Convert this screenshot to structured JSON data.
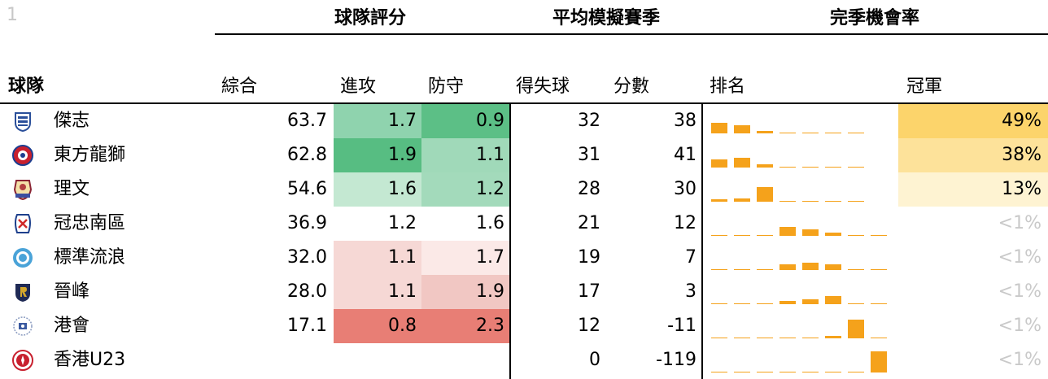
{
  "row_number": "1",
  "groups": {
    "rating": "球隊評分",
    "projection": "平均模擬賽季",
    "chances": "完季機會率"
  },
  "headers": {
    "team": "球隊",
    "overall": "綜合",
    "attack": "進攻",
    "defense": "防守",
    "goal_diff": "得失球",
    "points": "分數",
    "rank": "排名",
    "champion": "冠軍"
  },
  "colors": {
    "rank_bar": "#f5a21b",
    "faint_text": "#c9c9c9"
  },
  "chart_data": {
    "type": "table",
    "columns": [
      "球隊",
      "綜合",
      "進攻",
      "防守",
      "得失球",
      "分數",
      "排名",
      "冠軍"
    ],
    "rank_positions": 8,
    "rows": [
      {
        "team": "傑志",
        "logo": "kitchee-crest-icon",
        "overall": "63.7",
        "attack": "1.7",
        "defense": "0.9",
        "goal_diff": "32",
        "points": "38",
        "champion": "49%",
        "attack_bg": "#8fd3ae",
        "defense_bg": "#5cbf86",
        "champion_bg": "#fcd46b",
        "rank_dist": [
          0.49,
          0.38,
          0.13,
          0.0,
          0.0,
          0.0,
          0.0,
          0.0
        ]
      },
      {
        "team": "東方龍獅",
        "logo": "eastern-crest-icon",
        "overall": "62.8",
        "attack": "1.9",
        "defense": "1.1",
        "goal_diff": "31",
        "points": "41",
        "champion": "38%",
        "attack_bg": "#57bd82",
        "defense_bg": "#a0d9b9",
        "champion_bg": "#fde29a",
        "rank_dist": [
          0.38,
          0.45,
          0.17,
          0.0,
          0.0,
          0.0,
          0.0,
          0.0
        ]
      },
      {
        "team": "理文",
        "logo": "lee-man-crest-icon",
        "overall": "54.6",
        "attack": "1.6",
        "defense": "1.2",
        "goal_diff": "28",
        "points": "30",
        "champion": "13%",
        "attack_bg": "#c4e8d2",
        "defense_bg": "#a3dabb",
        "champion_bg": "#fef3d2",
        "rank_dist": [
          0.13,
          0.17,
          0.7,
          0.0,
          0.0,
          0.0,
          0.0,
          0.0
        ]
      },
      {
        "team": "冠忠南區",
        "logo": "southern-crest-icon",
        "overall": "36.9",
        "attack": "1.2",
        "defense": "1.6",
        "goal_diff": "21",
        "points": "12",
        "champion": "<1%",
        "attack_bg": "#ffffff",
        "defense_bg": "#ffffff",
        "champion_bg": "#ffffff",
        "rank_dist": [
          0.0,
          0.0,
          0.0,
          0.44,
          0.29,
          0.17,
          0.0,
          0.0
        ]
      },
      {
        "team": "標準流浪",
        "logo": "rangers-crest-icon",
        "overall": "32.0",
        "attack": "1.1",
        "defense": "1.7",
        "goal_diff": "19",
        "points": "7",
        "champion": "<1%",
        "attack_bg": "#f6d8d5",
        "defense_bg": "#fbe9e7",
        "champion_bg": "#ffffff",
        "rank_dist": [
          0.0,
          0.0,
          0.0,
          0.27,
          0.34,
          0.27,
          0.0,
          0.0
        ]
      },
      {
        "team": "晉峰",
        "logo": "resources-capital-crest-icon",
        "overall": "28.0",
        "attack": "1.1",
        "defense": "1.9",
        "goal_diff": "17",
        "points": "3",
        "champion": "<1%",
        "attack_bg": "#f6d8d5",
        "defense_bg": "#f1c7c3",
        "champion_bg": "#ffffff",
        "rank_dist": [
          0.0,
          0.0,
          0.0,
          0.17,
          0.25,
          0.38,
          0.0,
          0.0
        ]
      },
      {
        "team": "港會",
        "logo": "hkfc-crest-icon",
        "overall": "17.1",
        "attack": "0.8",
        "defense": "2.3",
        "goal_diff": "12",
        "points": "-11",
        "champion": "<1%",
        "attack_bg": "#e87e75",
        "defense_bg": "#e87e75",
        "champion_bg": "#ffffff",
        "rank_dist": [
          0.0,
          0.0,
          0.0,
          0.0,
          0.0,
          0.13,
          0.87,
          0.0
        ]
      },
      {
        "team": "香港U23",
        "logo": "hk-u23-crest-icon",
        "overall": "",
        "attack": "",
        "defense": "",
        "goal_diff": "0",
        "points": "-119",
        "champion": "<1%",
        "attack_bg": "#ffffff",
        "defense_bg": "#ffffff",
        "champion_bg": "#ffffff",
        "rank_dist": [
          0.0,
          0.0,
          0.0,
          0.0,
          0.0,
          0.0,
          0.0,
          1.0
        ]
      }
    ]
  }
}
